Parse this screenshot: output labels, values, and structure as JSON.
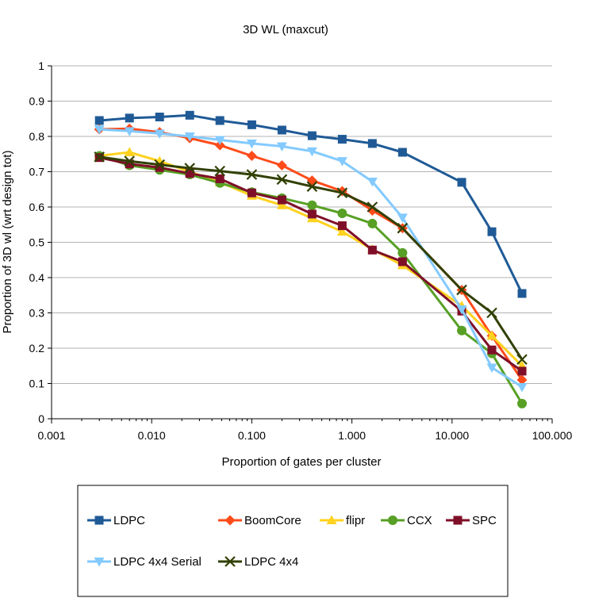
{
  "chart_data": {
    "type": "line",
    "title": "3D WL (maxcut)",
    "xlabel": "Proportion of gates per cluster",
    "ylabel": "Proportion of 3D wl (wrt design tot)",
    "x_scale": "log",
    "xlim": [
      0.001,
      100
    ],
    "ylim": [
      0,
      1
    ],
    "x_ticks": [
      0.001,
      0.01,
      0.1,
      1,
      10,
      100
    ],
    "x_tick_labels": [
      "0.001",
      "0.010",
      "0.100",
      "1.000",
      "10.000",
      "100.000"
    ],
    "y_ticks": [
      0,
      0.1,
      0.2,
      0.3,
      0.4,
      0.5,
      0.6,
      0.7,
      0.8,
      0.9,
      1
    ],
    "y_tick_labels": [
      "0",
      "0.1",
      "0.2",
      "0.3",
      "0.4",
      "0.5",
      "0.6",
      "0.7",
      "0.8",
      "0.9",
      "1"
    ],
    "grid": "horizontal",
    "legend_placement": "bottom",
    "series": [
      {
        "name": "LDPC",
        "color": "#1f5a96",
        "marker": "square",
        "x": [
          0.003,
          0.006,
          0.012,
          0.024,
          0.048,
          0.1,
          0.2,
          0.4,
          0.8,
          1.6,
          3.2,
          12.5,
          25,
          50
        ],
        "values": [
          0.845,
          0.852,
          0.855,
          0.86,
          0.845,
          0.833,
          0.818,
          0.802,
          0.792,
          0.78,
          0.755,
          0.67,
          0.53,
          0.355
        ]
      },
      {
        "name": "BoomCore",
        "color": "#ff4b1a",
        "marker": "diamond",
        "x": [
          0.003,
          0.006,
          0.012,
          0.024,
          0.048,
          0.1,
          0.2,
          0.4,
          0.8,
          1.6,
          3.2,
          12.5,
          25,
          50
        ],
        "values": [
          0.82,
          0.822,
          0.812,
          0.795,
          0.775,
          0.745,
          0.718,
          0.675,
          0.645,
          0.59,
          0.54,
          0.365,
          0.235,
          0.11
        ]
      },
      {
        "name": "flipr",
        "color": "#ffd21f",
        "marker": "triangle",
        "x": [
          0.003,
          0.006,
          0.012,
          0.024,
          0.048,
          0.1,
          0.2,
          0.4,
          0.8,
          1.6,
          3.2,
          12.5,
          25,
          50
        ],
        "values": [
          0.745,
          0.755,
          0.73,
          0.7,
          0.67,
          0.632,
          0.605,
          0.568,
          0.53,
          0.48,
          0.435,
          0.32,
          0.235,
          0.15
        ]
      },
      {
        "name": "CCX",
        "color": "#57a025",
        "marker": "circle",
        "x": [
          0.003,
          0.006,
          0.012,
          0.024,
          0.048,
          0.1,
          0.2,
          0.4,
          0.8,
          1.6,
          3.2,
          12.5,
          25,
          50
        ],
        "values": [
          0.745,
          0.718,
          0.705,
          0.692,
          0.668,
          0.642,
          0.625,
          0.605,
          0.582,
          0.553,
          0.47,
          0.25,
          0.185,
          0.043
        ]
      },
      {
        "name": "SPC",
        "color": "#7f0f28",
        "marker": "square",
        "x": [
          0.003,
          0.006,
          0.012,
          0.024,
          0.048,
          0.1,
          0.2,
          0.4,
          0.8,
          1.6,
          3.2,
          12.5,
          25,
          50
        ],
        "values": [
          0.74,
          0.722,
          0.712,
          0.695,
          0.68,
          0.64,
          0.62,
          0.58,
          0.547,
          0.478,
          0.445,
          0.305,
          0.195,
          0.135
        ]
      },
      {
        "name": "LDPC 4x4 Serial",
        "color": "#83caff",
        "marker": "triangle-down",
        "x": [
          0.003,
          0.006,
          0.012,
          0.024,
          0.048,
          0.1,
          0.2,
          0.4,
          0.8,
          1.6,
          3.2,
          12.5,
          25,
          50
        ],
        "values": [
          0.82,
          0.815,
          0.808,
          0.8,
          0.79,
          0.78,
          0.772,
          0.758,
          0.73,
          0.672,
          0.57,
          0.31,
          0.145,
          0.09
        ]
      },
      {
        "name": "LDPC 4x4",
        "color": "#314004",
        "marker": "x",
        "x": [
          0.003,
          0.006,
          0.012,
          0.024,
          0.048,
          0.1,
          0.2,
          0.4,
          0.8,
          1.6,
          3.2,
          12.5,
          25,
          50
        ],
        "values": [
          0.742,
          0.73,
          0.72,
          0.71,
          0.702,
          0.692,
          0.678,
          0.658,
          0.64,
          0.6,
          0.54,
          0.365,
          0.3,
          0.168
        ]
      }
    ]
  }
}
